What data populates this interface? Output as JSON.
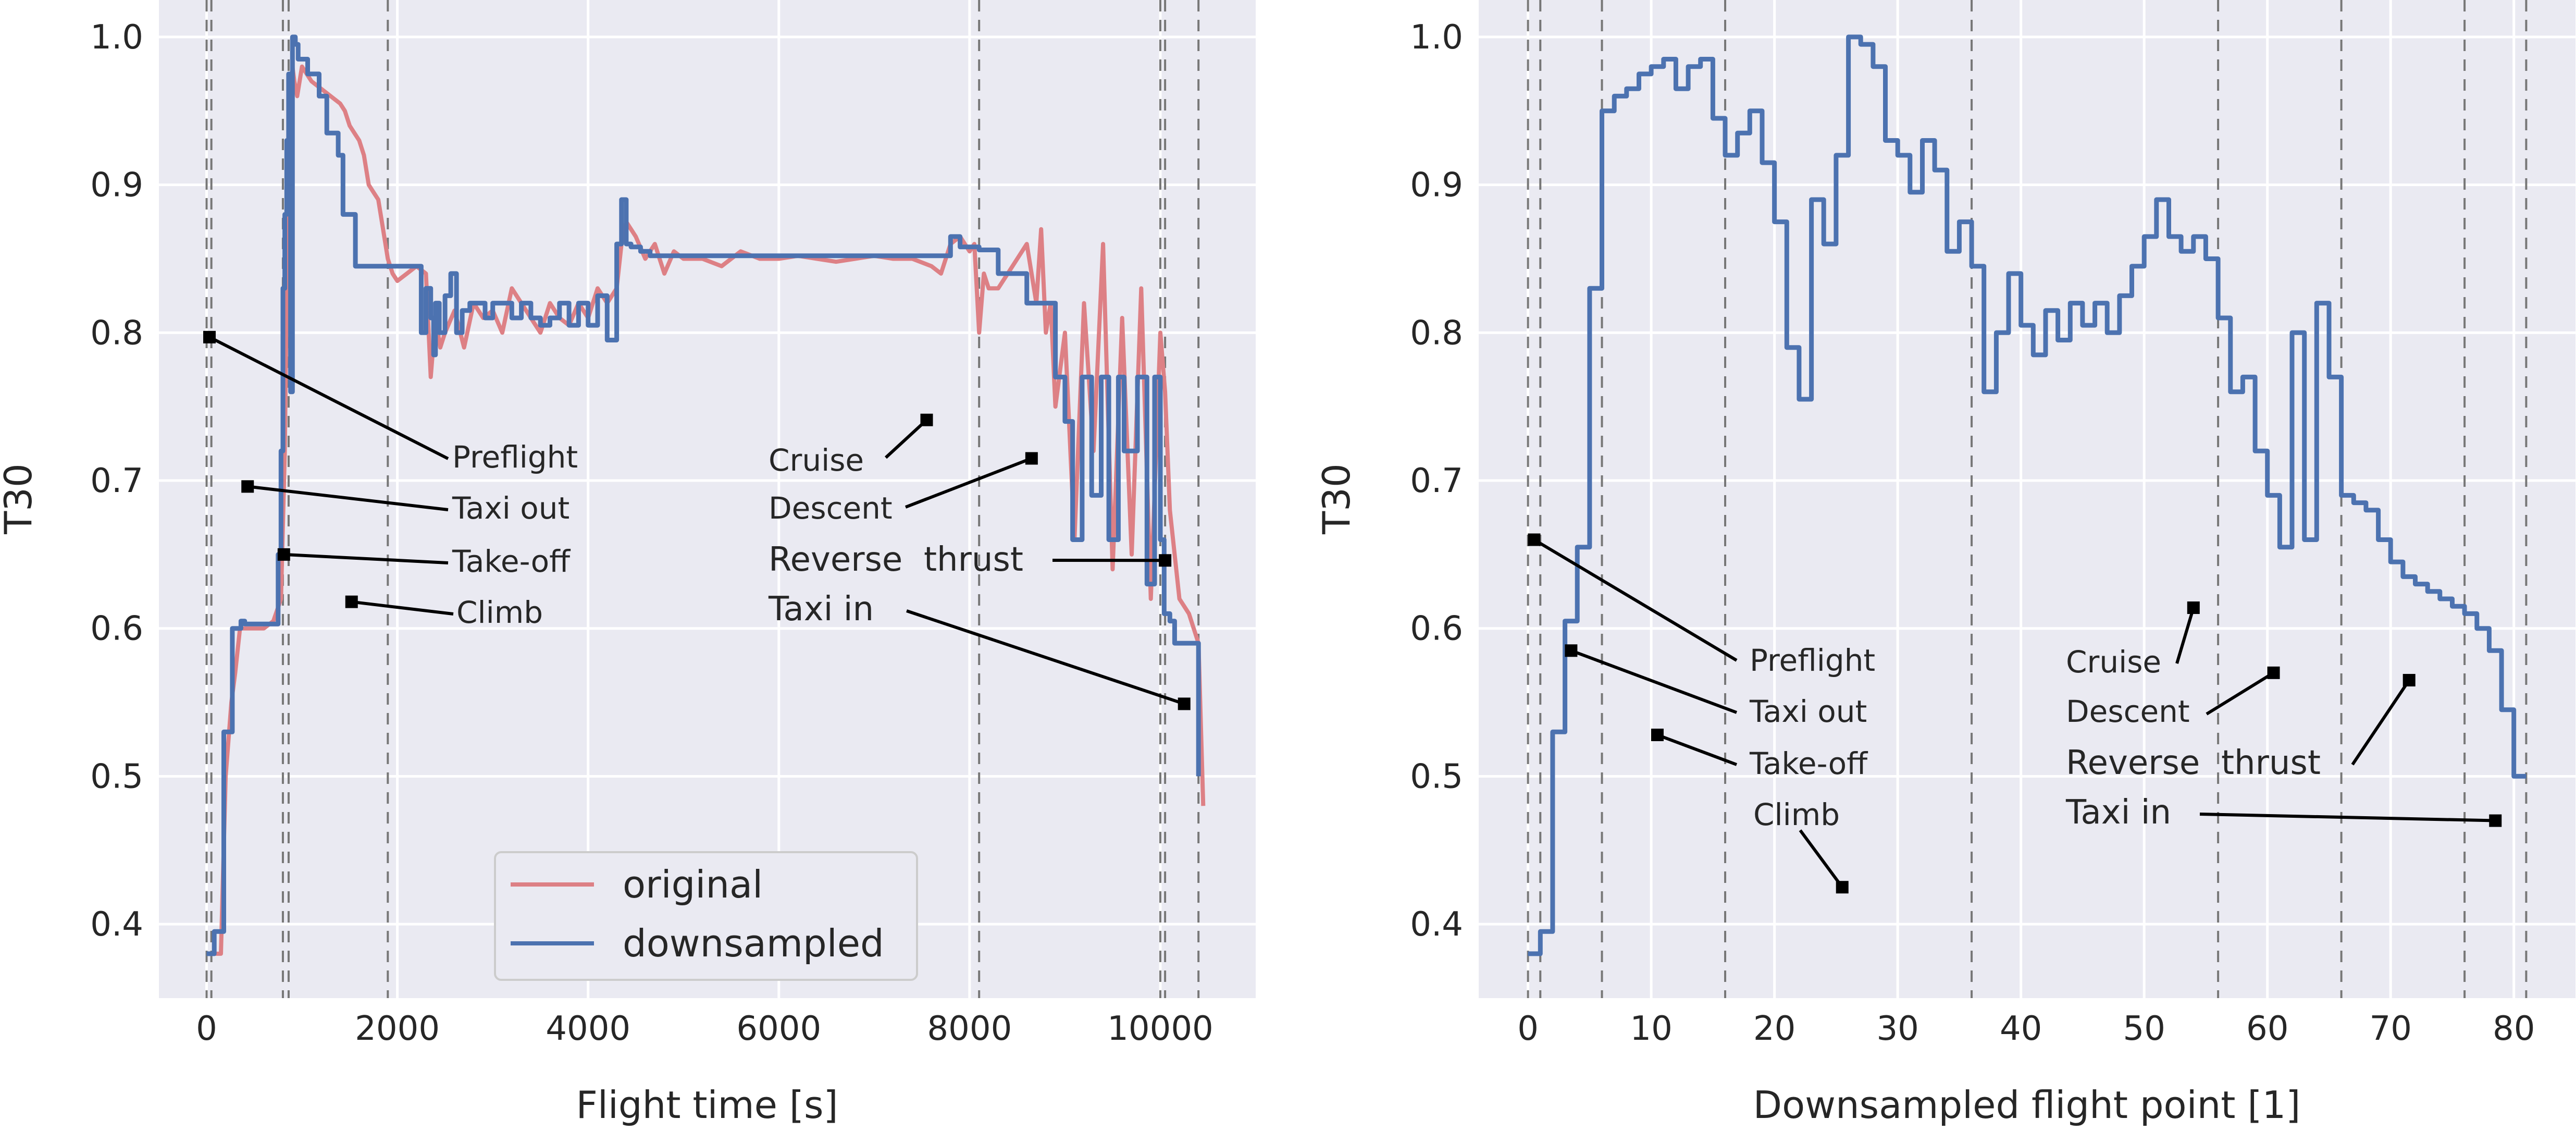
{
  "chart_data": [
    {
      "type": "line",
      "xlabel": "Flight time [s]",
      "ylabel": "T30",
      "xlim": [
        -500,
        11000
      ],
      "ylim": [
        0.35,
        1.025
      ],
      "xticks": [
        0,
        2000,
        4000,
        6000,
        8000,
        10000
      ],
      "yticks": [
        0.4,
        0.5,
        0.6,
        0.7,
        0.8,
        0.9,
        1.0
      ],
      "grid": true,
      "legend": {
        "position": "lower-center",
        "entries": [
          "original",
          "downsampled"
        ]
      },
      "phase_boundaries_x": [
        0,
        50,
        800,
        860,
        1900,
        8100,
        10000,
        10050,
        10400
      ],
      "series": [
        {
          "name": "original",
          "color": "#dd8085",
          "x": [
            0,
            80,
            150,
            200,
            260,
            300,
            350,
            400,
            500,
            600,
            700,
            780,
            820,
            850,
            870,
            900,
            920,
            950,
            1000,
            1050,
            1100,
            1200,
            1300,
            1400,
            1450,
            1500,
            1550,
            1600,
            1650,
            1700,
            1750,
            1800,
            1850,
            1900,
            1950,
            2000,
            2100,
            2200,
            2300,
            2350,
            2400,
            2450,
            2500,
            2600,
            2700,
            2800,
            2900,
            3000,
            3100,
            3200,
            3300,
            3400,
            3500,
            3600,
            3700,
            3800,
            3900,
            4000,
            4100,
            4200,
            4300,
            4350,
            4400,
            4500,
            4600,
            4700,
            4800,
            4900,
            5000,
            5200,
            5400,
            5600,
            5800,
            6000,
            6200,
            6400,
            6600,
            6800,
            7000,
            7200,
            7400,
            7600,
            7700,
            7800,
            7900,
            8000,
            8050,
            8100,
            8150,
            8200,
            8300,
            8400,
            8500,
            8600,
            8700,
            8750,
            8800,
            8850,
            8900,
            9000,
            9100,
            9200,
            9300,
            9400,
            9500,
            9600,
            9700,
            9800,
            9900,
            10000,
            10050,
            10100,
            10200,
            10300,
            10350,
            10400,
            10450
          ],
          "y": [
            0.38,
            0.38,
            0.38,
            0.5,
            0.55,
            0.57,
            0.6,
            0.6,
            0.6,
            0.6,
            0.605,
            0.62,
            0.72,
            0.88,
            0.94,
            0.98,
            0.97,
            0.96,
            0.98,
            0.975,
            0.97,
            0.965,
            0.96,
            0.955,
            0.95,
            0.94,
            0.935,
            0.93,
            0.92,
            0.9,
            0.895,
            0.89,
            0.87,
            0.85,
            0.84,
            0.835,
            0.84,
            0.845,
            0.84,
            0.77,
            0.81,
            0.79,
            0.8,
            0.815,
            0.79,
            0.82,
            0.81,
            0.815,
            0.8,
            0.83,
            0.82,
            0.81,
            0.8,
            0.82,
            0.81,
            0.805,
            0.82,
            0.81,
            0.83,
            0.82,
            0.83,
            0.86,
            0.875,
            0.865,
            0.85,
            0.86,
            0.84,
            0.855,
            0.85,
            0.85,
            0.845,
            0.855,
            0.85,
            0.85,
            0.852,
            0.85,
            0.848,
            0.85,
            0.852,
            0.85,
            0.85,
            0.845,
            0.84,
            0.86,
            0.865,
            0.855,
            0.86,
            0.8,
            0.84,
            0.83,
            0.83,
            0.84,
            0.85,
            0.86,
            0.82,
            0.87,
            0.8,
            0.82,
            0.75,
            0.8,
            0.66,
            0.82,
            0.72,
            0.86,
            0.64,
            0.81,
            0.65,
            0.83,
            0.62,
            0.8,
            0.76,
            0.68,
            0.62,
            0.61,
            0.6,
            0.59,
            0.48
          ]
        },
        {
          "name": "downsampled",
          "color": "#4c72b0",
          "step": true,
          "x": [
            0,
            30,
            80,
            120,
            180,
            270,
            330,
            360,
            400,
            480,
            580,
            640,
            700,
            750,
            780,
            800,
            820,
            840,
            860,
            880,
            900,
            930,
            960,
            1000,
            1060,
            1180,
            1260,
            1380,
            1430,
            1560,
            1680,
            1780,
            1860,
            1900,
            1940,
            2000,
            2200,
            2250,
            2300,
            2350,
            2380,
            2400,
            2440,
            2500,
            2560,
            2620,
            2680,
            2760,
            2840,
            2920,
            3000,
            3100,
            3200,
            3300,
            3400,
            3500,
            3600,
            3700,
            3800,
            3900,
            4000,
            4100,
            4200,
            4300,
            4350,
            4400,
            4450,
            4550,
            4650,
            4800,
            5100,
            5400,
            5800,
            6200,
            6600,
            7000,
            7400,
            7800,
            7900,
            8100,
            8300,
            8600,
            8800,
            8900,
            9000,
            9080,
            9180,
            9280,
            9380,
            9460,
            9560,
            9620,
            9760,
            9860,
            9940,
            10000,
            10040,
            10100,
            10150,
            10200,
            10260,
            10400
          ],
          "y": [
            0.38,
            0.38,
            0.395,
            0.395,
            0.53,
            0.6,
            0.6,
            0.605,
            0.603,
            0.603,
            0.603,
            0.603,
            0.603,
            0.65,
            0.72,
            0.83,
            0.88,
            0.93,
            0.975,
            0.76,
            1.0,
            0.995,
            0.985,
            0.985,
            0.975,
            0.96,
            0.935,
            0.92,
            0.88,
            0.845,
            0.845,
            0.845,
            0.845,
            0.845,
            0.845,
            0.845,
            0.845,
            0.8,
            0.83,
            0.81,
            0.785,
            0.82,
            0.8,
            0.825,
            0.84,
            0.8,
            0.815,
            0.82,
            0.82,
            0.81,
            0.82,
            0.82,
            0.81,
            0.82,
            0.81,
            0.805,
            0.81,
            0.82,
            0.805,
            0.82,
            0.805,
            0.825,
            0.795,
            0.86,
            0.89,
            0.86,
            0.858,
            0.855,
            0.852,
            0.852,
            0.852,
            0.852,
            0.852,
            0.852,
            0.852,
            0.852,
            0.852,
            0.865,
            0.858,
            0.856,
            0.84,
            0.82,
            0.82,
            0.77,
            0.74,
            0.66,
            0.77,
            0.69,
            0.77,
            0.66,
            0.77,
            0.72,
            0.77,
            0.63,
            0.77,
            0.66,
            0.61,
            0.605,
            0.59,
            0.59,
            0.59,
            0.5
          ]
        }
      ],
      "annotations": [
        {
          "text": "Preflight",
          "point": [
            30,
            0.797
          ]
        },
        {
          "text": "Taxi out",
          "point": [
            430,
            0.696
          ]
        },
        {
          "text": "Take-off",
          "point": [
            810,
            0.65
          ]
        },
        {
          "text": "Climb",
          "point": [
            1520,
            0.618
          ]
        },
        {
          "text": "Cruise",
          "point": [
            7550,
            0.741
          ]
        },
        {
          "text": "Descent",
          "point": [
            8650,
            0.715
          ]
        },
        {
          "text": "Reverse  thrust",
          "point": [
            10050,
            0.646
          ]
        },
        {
          "text": "Taxi in",
          "point": [
            10250,
            0.549
          ]
        }
      ]
    },
    {
      "type": "line",
      "xlabel": "Downsampled flight point [1]",
      "ylabel": "T30",
      "xlim": [
        -4,
        85
      ],
      "ylim": [
        0.35,
        1.025
      ],
      "xticks": [
        0,
        10,
        20,
        30,
        40,
        50,
        60,
        70,
        80
      ],
      "yticks": [
        0.4,
        0.5,
        0.6,
        0.7,
        0.8,
        0.9,
        1.0
      ],
      "grid": true,
      "phase_boundaries_x": [
        0,
        1,
        6,
        16,
        36,
        56,
        66,
        76,
        81
      ],
      "series": [
        {
          "name": "downsampled",
          "color": "#4c72b0",
          "step": true,
          "x": [
            0,
            1,
            2,
            3,
            4,
            5,
            6,
            7,
            8,
            9,
            10,
            11,
            12,
            13,
            14,
            15,
            16,
            17,
            18,
            19,
            20,
            21,
            22,
            23,
            24,
            25,
            26,
            27,
            28,
            29,
            30,
            31,
            32,
            33,
            34,
            35,
            36,
            37,
            38,
            39,
            40,
            41,
            42,
            43,
            44,
            45,
            46,
            47,
            48,
            49,
            50,
            51,
            52,
            53,
            54,
            55,
            56,
            57,
            58,
            59,
            60,
            61,
            62,
            63,
            64,
            65,
            66,
            67,
            68,
            69,
            70,
            71,
            72,
            73,
            74,
            75,
            76,
            77,
            78,
            79,
            80,
            81
          ],
          "y": [
            0.38,
            0.395,
            0.53,
            0.605,
            0.655,
            0.83,
            0.95,
            0.96,
            0.965,
            0.975,
            0.98,
            0.985,
            0.965,
            0.98,
            0.985,
            0.945,
            0.92,
            0.935,
            0.95,
            0.915,
            0.875,
            0.79,
            0.755,
            0.89,
            0.86,
            0.92,
            1.0,
            0.995,
            0.98,
            0.93,
            0.92,
            0.895,
            0.93,
            0.91,
            0.855,
            0.875,
            0.845,
            0.76,
            0.8,
            0.84,
            0.805,
            0.785,
            0.815,
            0.795,
            0.82,
            0.805,
            0.82,
            0.8,
            0.825,
            0.845,
            0.865,
            0.89,
            0.865,
            0.855,
            0.865,
            0.85,
            0.81,
            0.76,
            0.77,
            0.72,
            0.69,
            0.655,
            0.8,
            0.66,
            0.82,
            0.77,
            0.69,
            0.685,
            0.68,
            0.66,
            0.645,
            0.635,
            0.63,
            0.625,
            0.62,
            0.615,
            0.61,
            0.6,
            0.585,
            0.545,
            0.5,
            0.5
          ]
        }
      ],
      "annotations": [
        {
          "text": "Preflight",
          "point": [
            0.5,
            0.66
          ]
        },
        {
          "text": "Taxi out",
          "point": [
            3.5,
            0.585
          ]
        },
        {
          "text": "Take-off",
          "point": [
            10.5,
            0.528
          ]
        },
        {
          "text": "Climb",
          "point": [
            25.5,
            0.425
          ]
        },
        {
          "text": "Cruise",
          "point": [
            54,
            0.614
          ]
        },
        {
          "text": "Descent",
          "point": [
            60.5,
            0.57
          ]
        },
        {
          "text": "Reverse  thrust",
          "point": [
            71.5,
            0.565
          ]
        },
        {
          "text": "Taxi in",
          "point": [
            78.5,
            0.47
          ]
        }
      ]
    }
  ]
}
